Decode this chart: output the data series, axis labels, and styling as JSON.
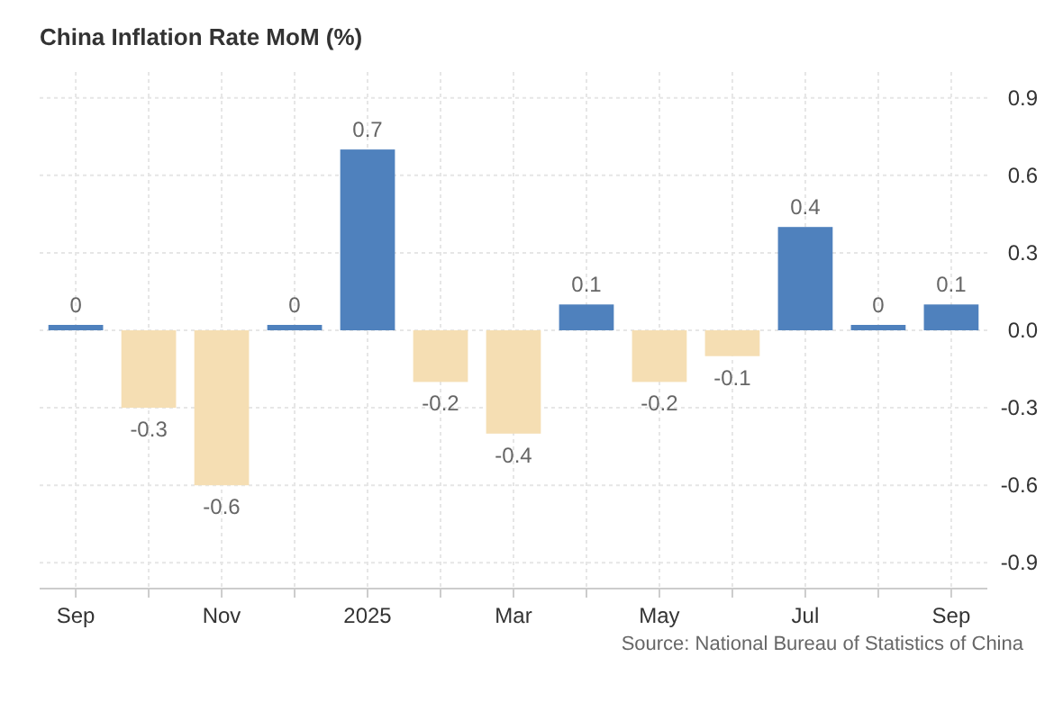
{
  "chart_data": {
    "type": "bar",
    "title": "China Inflation Rate MoM (%)",
    "categories": [
      "Sep",
      null,
      "Nov",
      null,
      "2025",
      null,
      "Mar",
      null,
      "May",
      null,
      "Jul",
      null,
      "Sep"
    ],
    "values": [
      0,
      -0.3,
      -0.6,
      0,
      0.7,
      -0.2,
      -0.4,
      0.1,
      -0.2,
      -0.1,
      0.4,
      0,
      0.1
    ],
    "colors": [
      "#4f81bd",
      "#f5deb3",
      "#f5deb3",
      "#4f81bd",
      "#4f81bd",
      "#f5deb3",
      "#f5deb3",
      "#4f81bd",
      "#f5deb3",
      "#f5deb3",
      "#4f81bd",
      "#4f81bd",
      "#4f81bd"
    ],
    "ylim": [
      -1,
      1
    ],
    "yticks": [
      0.9,
      0.6,
      0.3,
      {
        "value": 0,
        "label": "0.0"
      },
      -0.3,
      -0.6,
      -0.9
    ],
    "grid": true,
    "data_labels": true,
    "annotations": [
      "Source: National Bureau of Statistics of China"
    ]
  }
}
